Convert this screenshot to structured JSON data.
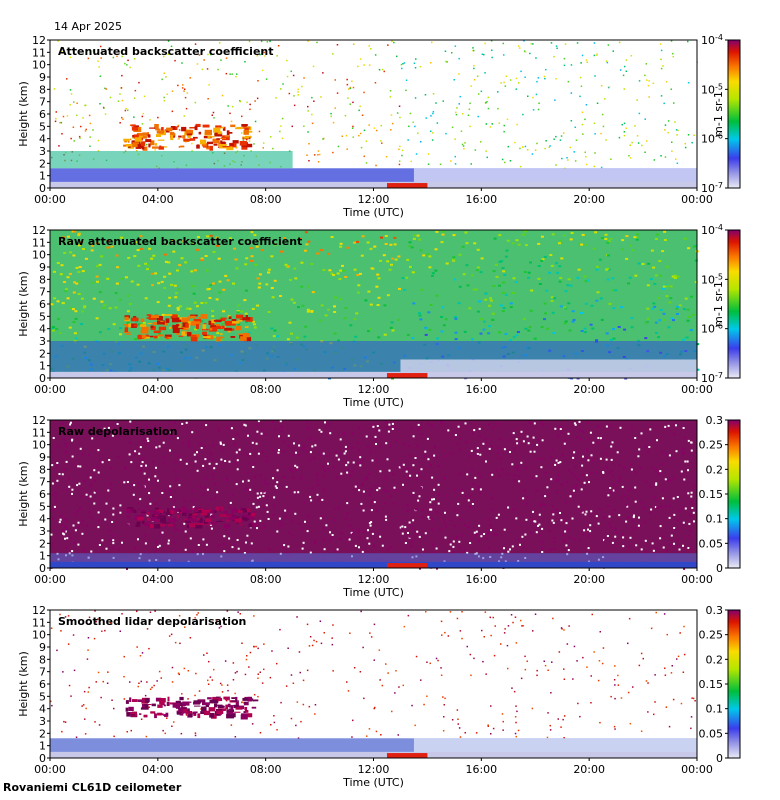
{
  "date": "14 Apr 2025",
  "footer": "Rovaniemi CL61D ceilometer",
  "x_ticks": [
    "00:00",
    "04:00",
    "08:00",
    "12:00",
    "16:00",
    "20:00",
    "00:00"
  ],
  "y_ticks": [
    "0",
    "1",
    "2",
    "3",
    "4",
    "5",
    "6",
    "7",
    "8",
    "9",
    "10",
    "11",
    "12"
  ],
  "chart_data": [
    {
      "type": "heatmap",
      "title": "Attenuated backscatter coefficient",
      "xlabel": "Time (UTC)",
      "ylabel": "Height (km)",
      "xlim": [
        0,
        24
      ],
      "ylim": [
        0,
        12
      ],
      "colorbar": {
        "scale": "log",
        "ticks": [
          "10^-7",
          "10^-6",
          "10^-5",
          "10^-4"
        ],
        "unit": "m^-1 sr^-1",
        "min": 1e-07,
        "max": 0.0001
      },
      "features": [
        {
          "name": "elevated cloud layer",
          "time_h": [
            2.5,
            7.5
          ],
          "height_km": [
            3.5,
            5.0
          ]
        },
        {
          "name": "boundary layer",
          "time_h": [
            0,
            13.5
          ],
          "height_km": [
            0,
            1.5
          ]
        },
        {
          "name": "upper aerosol / noise",
          "time_h": [
            0,
            24
          ],
          "height_km": [
            1.5,
            12
          ]
        }
      ]
    },
    {
      "type": "heatmap",
      "title": "Raw attenuated backscatter coefficient",
      "xlabel": "Time (UTC)",
      "ylabel": "Height (km)",
      "xlim": [
        0,
        24
      ],
      "ylim": [
        0,
        12
      ],
      "colorbar": {
        "scale": "log",
        "ticks": [
          "10^-7",
          "10^-6",
          "10^-5",
          "10^-4"
        ],
        "unit": "m^-1 sr^-1",
        "min": 1e-07,
        "max": 0.0001
      },
      "features": [
        {
          "name": "elevated cloud layer",
          "time_h": [
            2.5,
            7.5
          ],
          "height_km": [
            3.5,
            5.0
          ]
        },
        {
          "name": "high noise region",
          "time_h": [
            2,
            14
          ],
          "height_km": [
            6,
            12
          ]
        }
      ]
    },
    {
      "type": "heatmap",
      "title": "Raw depolarisation",
      "xlabel": "Time (UTC)",
      "ylabel": "Height (km)",
      "xlim": [
        0,
        24
      ],
      "ylim": [
        0,
        12
      ],
      "colorbar": {
        "scale": "linear",
        "ticks": [
          "0",
          "0.05",
          "0.1",
          "0.15",
          "0.2",
          "0.25",
          "0.3"
        ],
        "min": 0,
        "max": 0.3
      }
    },
    {
      "type": "heatmap",
      "title": "Smoothed lidar depolarisation",
      "xlabel": "Time (UTC)",
      "ylabel": "Height (km)",
      "xlim": [
        0,
        24
      ],
      "ylim": [
        0,
        12
      ],
      "colorbar": {
        "scale": "linear",
        "ticks": [
          "0",
          "0.05",
          "0.1",
          "0.15",
          "0.2",
          "0.25",
          "0.3"
        ],
        "min": 0,
        "max": 0.3
      },
      "features": [
        {
          "name": "elevated depolarising layer",
          "time_h": [
            2.8,
            7.5
          ],
          "height_km": [
            3.5,
            5.0
          ]
        },
        {
          "name": "low-level layer",
          "time_h": [
            0,
            24
          ],
          "height_km": [
            0,
            1.5
          ]
        }
      ]
    }
  ]
}
